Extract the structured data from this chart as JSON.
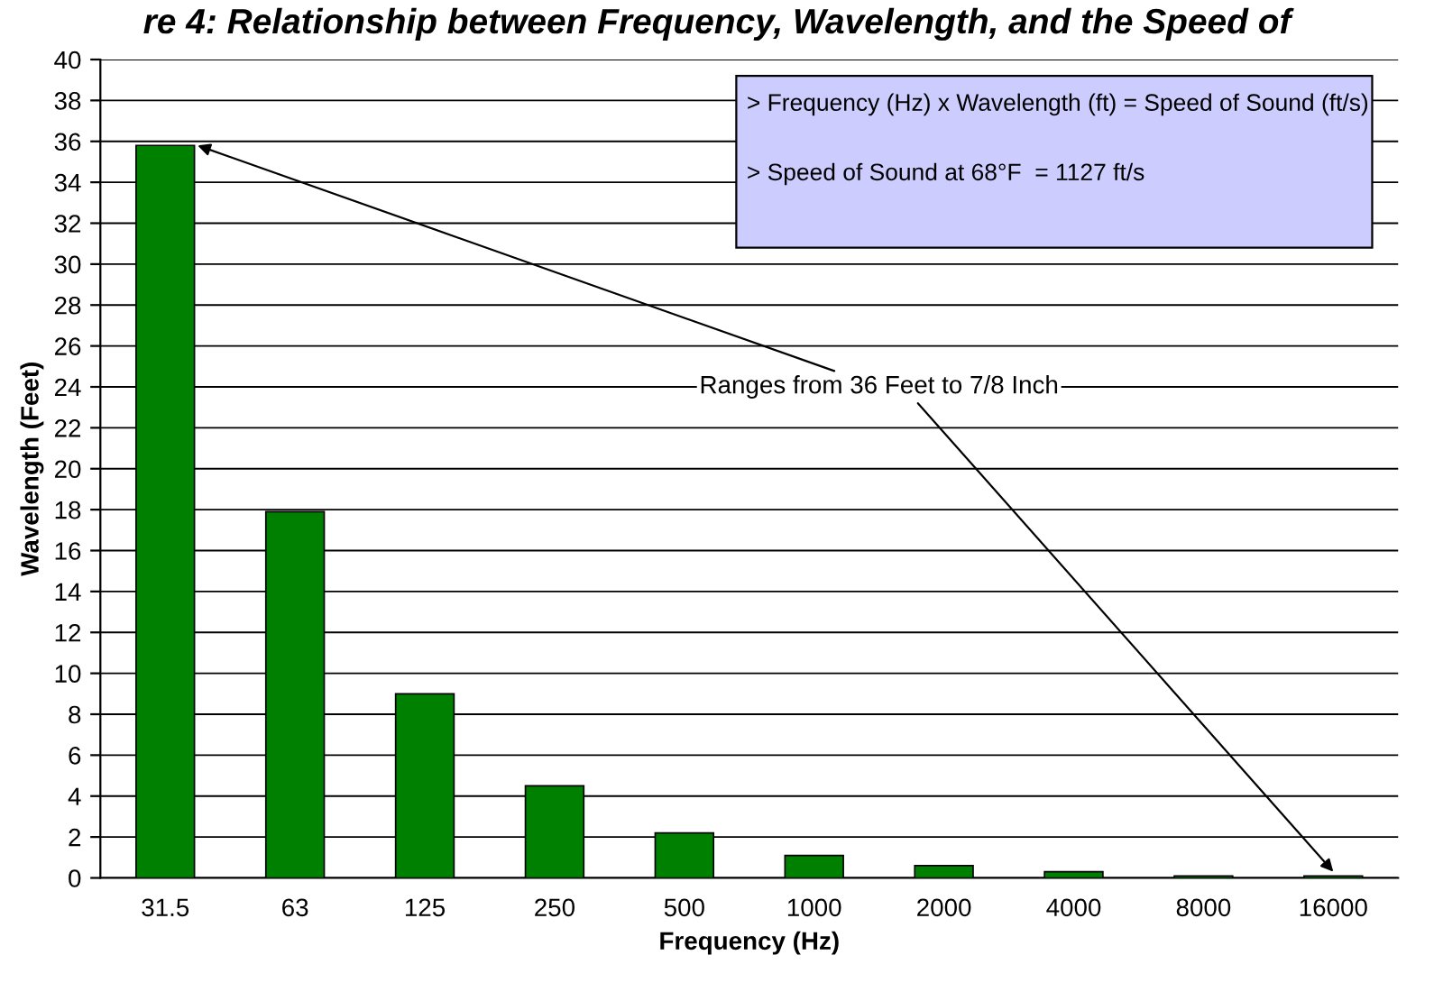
{
  "chart_data": {
    "type": "bar",
    "title": "re 4: Relationship between Frequency, Wavelength, and the Speed of",
    "xlabel": "Frequency (Hz)",
    "ylabel": "Wavelength (Feet)",
    "categories": [
      "31.5",
      "63",
      "125",
      "250",
      "500",
      "1000",
      "2000",
      "4000",
      "8000",
      "16000"
    ],
    "values": [
      35.8,
      17.9,
      9.0,
      4.5,
      2.2,
      1.1,
      0.6,
      0.3,
      0.1,
      0.1
    ],
    "color": "#008000",
    "ylim": [
      0,
      40
    ],
    "yticks": [
      0,
      2,
      4,
      6,
      8,
      10,
      12,
      14,
      16,
      18,
      20,
      22,
      24,
      26,
      28,
      30,
      32,
      34,
      36,
      38,
      40
    ],
    "grid": "y",
    "annotations": [
      "> Frequency (Hz) x Wavelength (ft) = Speed of Sound (ft/s)",
      "> Speed of Sound at 68°F  = 1127 ft/s",
      "Ranges from 36 Feet to 7/8 Inch"
    ]
  }
}
